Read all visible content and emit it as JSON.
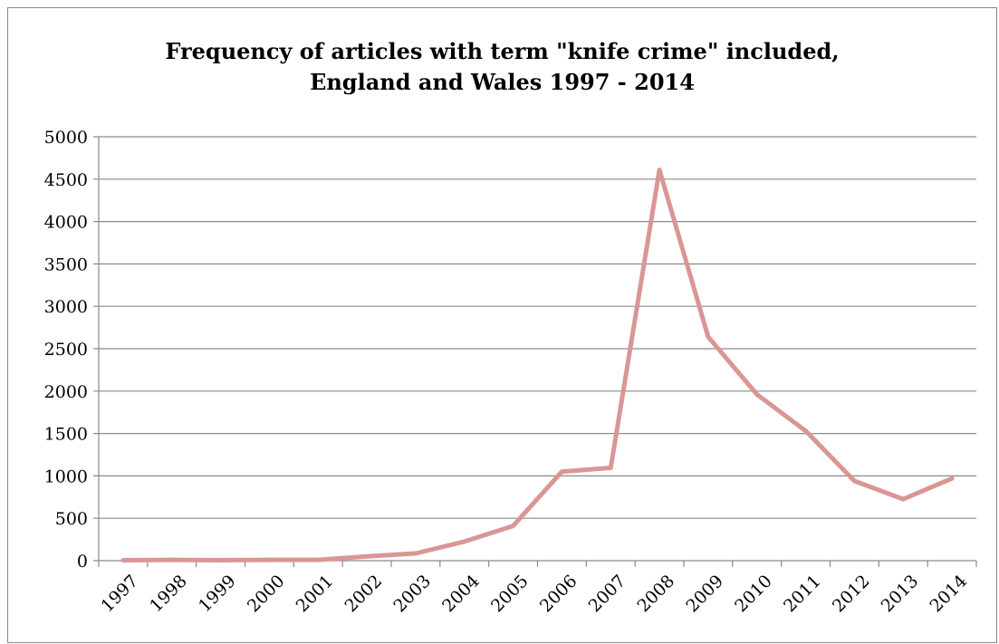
{
  "chart_data": {
    "type": "line",
    "title_line1": "Frequency of articles with term \"knife crime\" included,",
    "title_line2": "England and Wales 1997 - 2014",
    "xlabel": "",
    "ylabel": "",
    "categories": [
      "1997",
      "1998",
      "1999",
      "2000",
      "2001",
      "2002",
      "2003",
      "2004",
      "2005",
      "2006",
      "2007",
      "2008",
      "2009",
      "2010",
      "2011",
      "2012",
      "2013",
      "2014"
    ],
    "series": [
      {
        "values": [
          5,
          10,
          5,
          10,
          10,
          50,
          85,
          225,
          410,
          1050,
          1095,
          4610,
          2640,
          1960,
          1530,
          940,
          725,
          970
        ],
        "color": "#d99694"
      }
    ],
    "ylim": [
      0,
      5000
    ],
    "yticks": [
      0,
      500,
      1000,
      1500,
      2000,
      2500,
      3000,
      3500,
      4000,
      4500,
      5000
    ],
    "grid": true,
    "legend": "none",
    "gridline_color": "#8a8a8a",
    "axis_color": "#8a8a8a"
  }
}
